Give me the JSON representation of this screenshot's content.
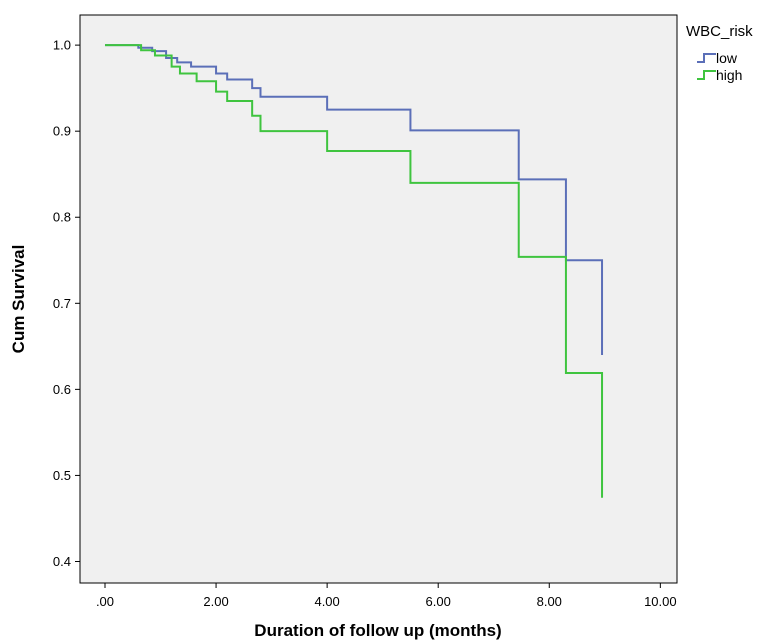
{
  "chart_data": {
    "type": "line",
    "subtype": "kaplan-meier-step",
    "title": "",
    "xlabel": "Duration of follow up (months)",
    "ylabel": "Cum Survival",
    "xlim": [
      -0.45,
      10.3
    ],
    "ylim": [
      0.375,
      1.035
    ],
    "x_ticks": [
      0,
      2,
      4,
      6,
      8,
      10
    ],
    "x_tick_labels": [
      ".00",
      "2.00",
      "4.00",
      "6.00",
      "8.00",
      "10.00"
    ],
    "y_ticks": [
      0.4,
      0.5,
      0.6,
      0.7,
      0.8,
      0.9,
      1.0
    ],
    "y_tick_labels": [
      "0.4",
      "0.5",
      "0.6",
      "0.7",
      "0.8",
      "0.9",
      "1.0"
    ],
    "grid": false,
    "background": "#f0f0f0",
    "legend": {
      "title": "WBC_risk",
      "placement": "top-right-outside"
    },
    "series": [
      {
        "name": "low",
        "color": "#5b6fb8",
        "x": [
          0,
          0.6,
          0.85,
          1.1,
          1.3,
          1.55,
          2.0,
          2.2,
          2.65,
          2.8,
          4.0,
          5.5,
          7.45,
          8.3,
          8.95
        ],
        "y": [
          1.0,
          0.997,
          0.993,
          0.985,
          0.98,
          0.975,
          0.967,
          0.96,
          0.95,
          0.94,
          0.925,
          0.901,
          0.844,
          0.75,
          0.64
        ]
      },
      {
        "name": "high",
        "color": "#3fc43f",
        "x": [
          0,
          0.65,
          0.9,
          1.2,
          1.35,
          1.65,
          2.0,
          2.2,
          2.65,
          2.8,
          4.0,
          5.5,
          7.45,
          8.3,
          8.95
        ],
        "y": [
          1.0,
          0.994,
          0.988,
          0.975,
          0.967,
          0.958,
          0.946,
          0.935,
          0.918,
          0.9,
          0.877,
          0.84,
          0.754,
          0.619,
          0.474
        ]
      }
    ]
  }
}
